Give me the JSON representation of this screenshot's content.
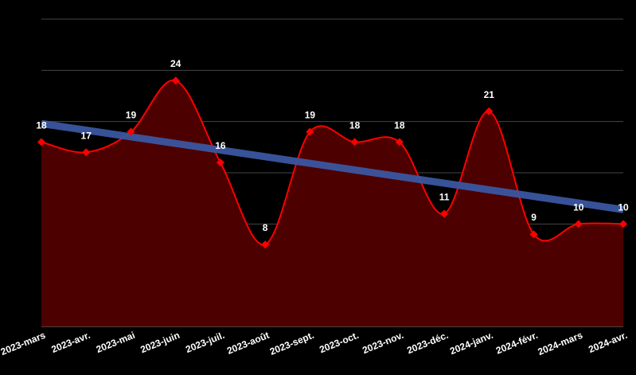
{
  "chart_data": {
    "type": "area",
    "categories": [
      "2023-mars",
      "2023-avr.",
      "2023-mai",
      "2023-juin",
      "2023-juil.",
      "2023-août",
      "2023-sept.",
      "2023-oct.",
      "2023-nov.",
      "2023-déc.",
      "2024-janv.",
      "2024-févr.",
      "2024-mars",
      "2024-avr."
    ],
    "series": [
      {
        "values": [
          18,
          17,
          19,
          24,
          16,
          8,
          19,
          18,
          18,
          11,
          21,
          9,
          10,
          10
        ]
      }
    ],
    "trendline": {
      "start": 19.8,
      "end": 11.4
    },
    "ylim": [
      0,
      30
    ],
    "grid": true,
    "colors": {
      "background": "#000000",
      "grid": "#444444",
      "area_fill": "#4d0000",
      "line": "#ff0000",
      "marker": "#ff0000",
      "trend": "#3a56a0",
      "text": "#ffffff"
    }
  }
}
